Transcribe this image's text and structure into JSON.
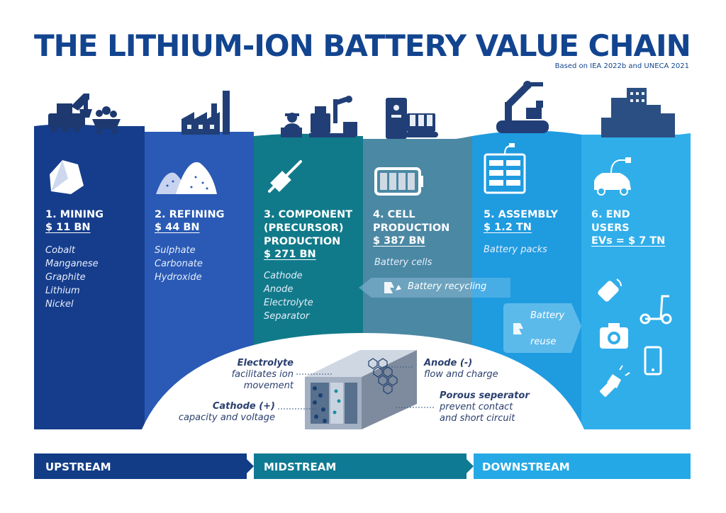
{
  "title": "THE LITHIUM-ION BATTERY VALUE CHAIN",
  "source": "Based on IEA 2022b and UNECA 2021",
  "columns": [
    {
      "heading": "1. MINING",
      "amount": "$ 11 BN",
      "items": [
        "Cobalt",
        "Manganese",
        "Graphite",
        "Lithium",
        "Nickel"
      ],
      "color": "#163d8c",
      "icon": "rock-icon"
    },
    {
      "heading": "2. REFINING",
      "amount": "$ 44 BN",
      "items": [
        "Sulphate",
        "Carbonate",
        "Hydroxide"
      ],
      "color": "#2a5ab5",
      "icon": "powder-piles-icon"
    },
    {
      "heading": "3. COMPONENT (PRECURSOR) PRODUCTION",
      "heading_lines": [
        "3. COMPONENT",
        "(PRECURSOR)",
        "PRODUCTION"
      ],
      "amount": "$ 271 BN",
      "items": [
        "Cathode",
        "Anode",
        "Electrolyte",
        "Separator"
      ],
      "color": "#117a8a",
      "icon": "connector-icon"
    },
    {
      "heading": "4. CELL PRODUCTION",
      "heading_lines": [
        "4. CELL",
        "PRODUCTION"
      ],
      "amount": "$ 387 BN",
      "items": [
        "Battery cells"
      ],
      "color": "#4b88a4",
      "icon": "battery-icon"
    },
    {
      "heading": "5. ASSEMBLY",
      "amount": "$ 1.2 TN",
      "items": [
        "Battery packs"
      ],
      "color": "#1f9be0",
      "icon": "battery-pack-icon"
    },
    {
      "heading": "6. END USERS",
      "heading_lines": [
        "6. END",
        "USERS"
      ],
      "amount": "EVs = $ 7 TN",
      "items": [],
      "color": "#30aeea",
      "icon": "electric-car-icon"
    }
  ],
  "flows": {
    "recycling": "Battery recycling",
    "reuse_line1": "Battery",
    "reuse_line2": "reuse"
  },
  "cell_diagram": {
    "electrolyte_title": "Electrolyte",
    "electrolyte_desc_1": "facilitates ion",
    "electrolyte_desc_2": "movement",
    "cathode_title": "Cathode (+)",
    "cathode_desc": "capacity and voltage",
    "anode_title": "Anode (-)",
    "anode_desc": "flow and charge",
    "separator_title": "Porous seperator",
    "separator_desc_1": "prevent contact",
    "separator_desc_2": "and short circuit"
  },
  "stages": [
    "UPSTREAM",
    "MIDSTREAM",
    "DOWNSTREAM"
  ],
  "colors": {
    "title": "#12448f",
    "upstream": "#123d86",
    "midstream": "#0f7a93",
    "downstream": "#25a9e6",
    "skyline": "#2a4f80"
  }
}
